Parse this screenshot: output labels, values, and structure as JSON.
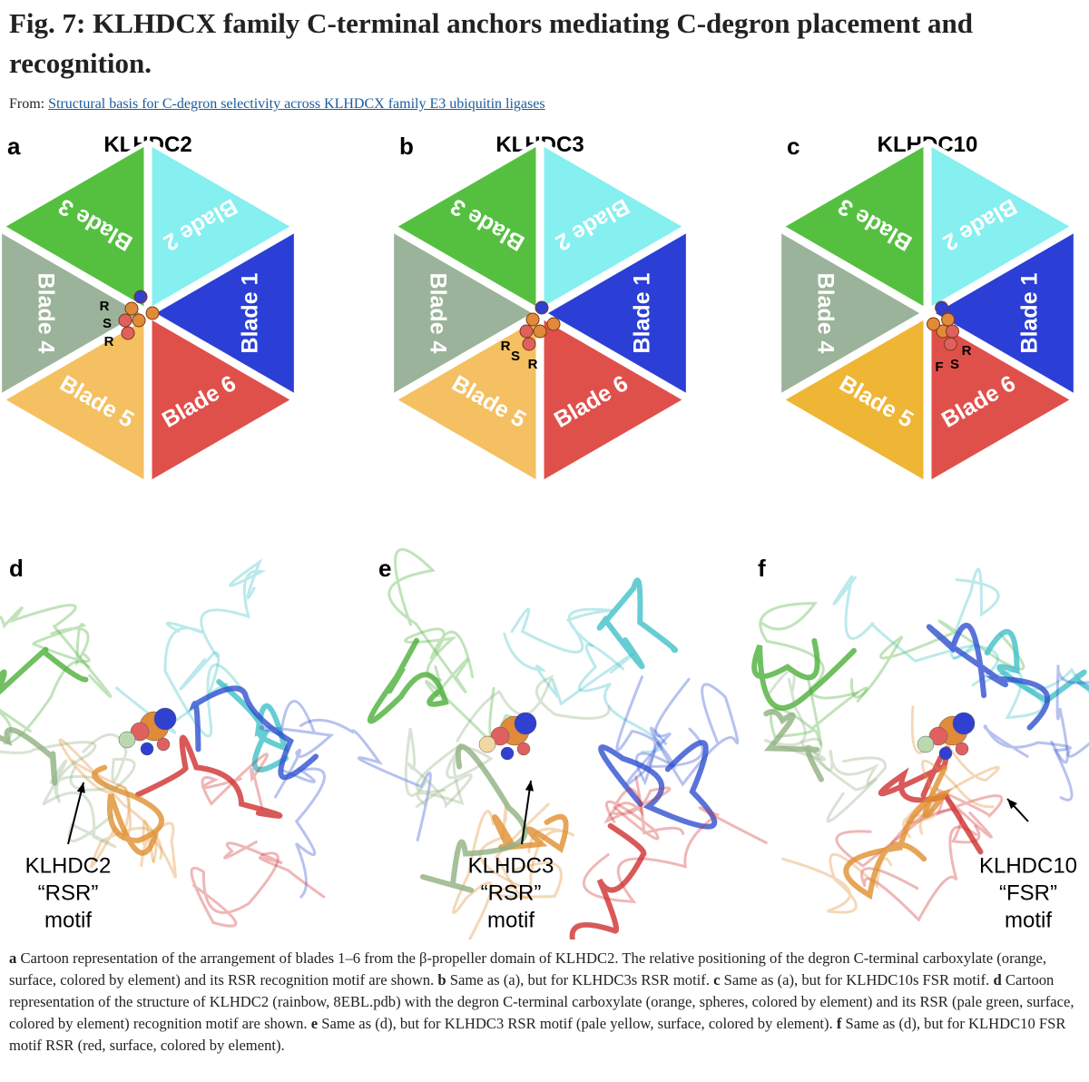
{
  "header": {
    "title": "Fig. 7: KLHDCX family C-terminal anchors mediating C-degron placement and recognition.",
    "source_prefix": "From:",
    "source_link": "Structural basis for C-degron selectivity across KLHDCX family E3 ubiquitin ligases"
  },
  "panels": [
    {
      "letter": "a",
      "title": "KLHDC2",
      "blades": [
        "Blade 1",
        "Blade 2",
        "Blade 3",
        "Blade 4",
        "Blade 5",
        "Blade 6"
      ],
      "motif": [
        "R",
        "S",
        "R"
      ]
    },
    {
      "letter": "b",
      "title": "KLHDC3",
      "blades": [
        "Blade 1",
        "Blade 2",
        "Blade 3",
        "Blade 4",
        "Blade 5",
        "Blade 6"
      ],
      "motif": [
        "R",
        "S",
        "R"
      ]
    },
    {
      "letter": "c",
      "title": "KLHDC10",
      "blades": [
        "Blade 1",
        "Blade 2",
        "Blade 3",
        "Blade 4",
        "Blade 5",
        "Blade 6"
      ],
      "motif": [
        "F",
        "S",
        "R"
      ]
    }
  ],
  "structures": [
    {
      "letter": "d",
      "label": [
        "KLHDC2",
        "“RSR”",
        "motif"
      ]
    },
    {
      "letter": "e",
      "label": [
        "KLHDC3",
        "“RSR”",
        "motif"
      ]
    },
    {
      "letter": "f",
      "label": [
        "KLHDC10",
        "“FSR”",
        "motif"
      ]
    }
  ],
  "caption": [
    {
      "label": "a",
      "text": "Cartoon representation of the arrangement of blades 1–6 from the β-propeller domain of KLHDC2. The relative positioning of the degron C-terminal carboxylate (orange, surface, colored by element) and its RSR recognition motif are shown."
    },
    {
      "label": "b",
      "text": "Same as (a), but for KLHDC3s RSR motif."
    },
    {
      "label": "c",
      "text": "Same as (a), but for KLHDC10s FSR motif."
    },
    {
      "label": "d",
      "text": "Cartoon representation of the structure of KLHDC2 (rainbow, 8EBL.pdb) with the degron C-terminal carboxylate (orange, spheres, colored by element) and its RSR (pale green, surface, colored by element) recognition motif are shown."
    },
    {
      "label": "e",
      "text": "Same as (d), but for KLHDC3 RSR motif (pale yellow, surface, colored by element)."
    },
    {
      "label": "f",
      "text": "Same as (d), but for KLHDC10 FSR motif RSR (red, surface, colored by element)."
    }
  ]
}
